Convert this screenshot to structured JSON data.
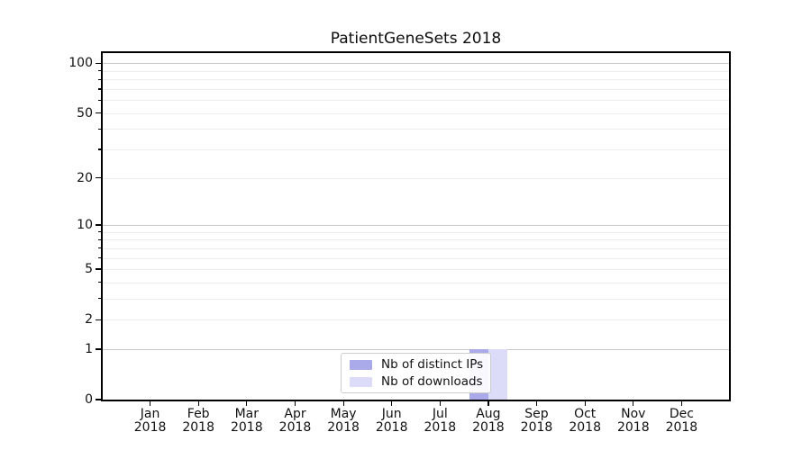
{
  "chart_data": {
    "type": "bar",
    "title": "PatientGeneSets 2018",
    "categories": [
      "Jan",
      "Feb",
      "Mar",
      "Apr",
      "May",
      "Jun",
      "Jul",
      "Aug",
      "Sep",
      "Oct",
      "Nov",
      "Dec"
    ],
    "x_tick_second_line": "2018",
    "series": [
      {
        "key": "distinct-ips",
        "name": "Nb of distinct IPs",
        "color": "#aaaaea",
        "values": [
          0,
          0,
          0,
          0,
          0,
          0,
          0,
          1,
          0,
          0,
          0,
          0
        ]
      },
      {
        "key": "downloads",
        "name": "Nb of downloads",
        "color": "#dcdcf8",
        "values": [
          0,
          0,
          0,
          0,
          0,
          0,
          0,
          1,
          0,
          0,
          0,
          0
        ]
      }
    ],
    "y_axis": {
      "scale": "log1p",
      "tick_values": [
        0,
        1,
        2,
        5,
        10,
        20,
        50,
        100
      ],
      "decade_gridline_values": [
        1,
        10,
        100
      ],
      "minor_gridline_values": [
        2,
        3,
        4,
        5,
        6,
        7,
        8,
        9,
        20,
        30,
        40,
        50,
        60,
        70,
        80,
        90
      ],
      "ylim_top_approx": 115
    },
    "legend": {
      "position": "lower-center"
    },
    "grid": true
  },
  "colors": {
    "spine": "#000000",
    "decade_grid": "#c9c9c9",
    "minor_grid": "#ececec",
    "text": "#111111",
    "legend_border": "#cccccc",
    "legend_bg": "#ffffff",
    "series_distinct_ips": "#aaaaea",
    "series_downloads": "#dcdcf8"
  }
}
